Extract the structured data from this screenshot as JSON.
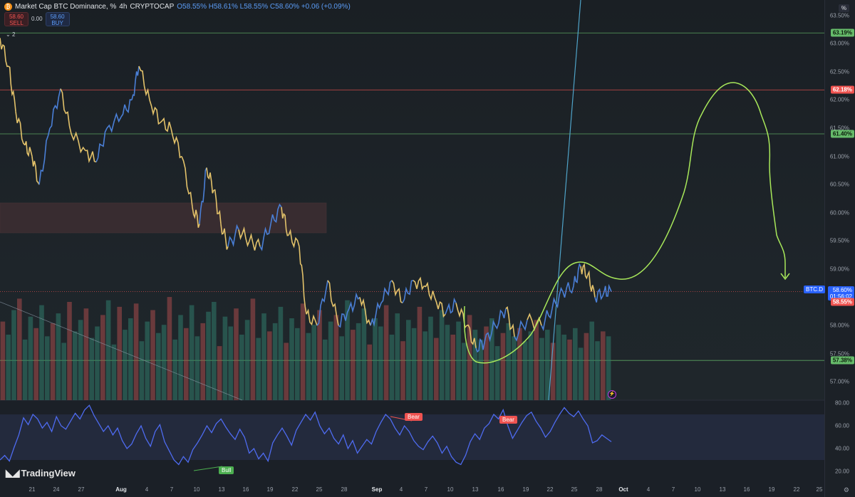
{
  "header": {
    "symbol_title": "Market Cap BTC Dominance, %",
    "interval": "4h",
    "exchange": "CRYPTOCAP",
    "ohlc": "O58.55% H58.61% L58.55% C58.60% +0.06 (+0.09%)",
    "logo_letter": "₿",
    "percent_toggle": "%",
    "indicators_count": "2"
  },
  "trade": {
    "sell_price": "58.60",
    "sell_label": "SELL",
    "spread": "0.00",
    "buy_price": "58.60",
    "buy_label": "BUY"
  },
  "price_axis": {
    "ticks": [
      "63.50%",
      "63.00%",
      "62.50%",
      "62.00%",
      "61.50%",
      "61.00%",
      "60.50%",
      "60.00%",
      "59.50%",
      "59.00%",
      "58.00%",
      "57.50%",
      "57.00%"
    ],
    "levels": [
      {
        "label": "63.19%",
        "value": 63.19,
        "color": "#66bb6a",
        "text_color": "#0b1a0b"
      },
      {
        "label": "62.18%",
        "value": 62.18,
        "color": "#ef5350",
        "text_color": "#ffffff"
      },
      {
        "label": "61.40%",
        "value": 61.4,
        "color": "#66bb6a",
        "text_color": "#0b1a0b"
      },
      {
        "label": "57.38%",
        "value": 57.38,
        "color": "#66bb6a",
        "text_color": "#0b1a0b"
      }
    ],
    "symbol_tag": "BTC.D",
    "last_price": "58.60%",
    "countdown": "01:56:02",
    "prev_close": "58.55%"
  },
  "rsi_axis": {
    "ticks": [
      "80.00",
      "60.00",
      "40.00",
      "20.00"
    ]
  },
  "time_axis": {
    "ticks": [
      {
        "label": "21",
        "bold": false
      },
      {
        "label": "24",
        "bold": false
      },
      {
        "label": "27",
        "bold": false
      },
      {
        "label": "Aug",
        "bold": true
      },
      {
        "label": "4",
        "bold": false
      },
      {
        "label": "7",
        "bold": false
      },
      {
        "label": "10",
        "bold": false
      },
      {
        "label": "13",
        "bold": false
      },
      {
        "label": "16",
        "bold": false
      },
      {
        "label": "19",
        "bold": false
      },
      {
        "label": "22",
        "bold": false
      },
      {
        "label": "25",
        "bold": false
      },
      {
        "label": "28",
        "bold": false
      },
      {
        "label": "Sep",
        "bold": true
      },
      {
        "label": "4",
        "bold": false
      },
      {
        "label": "7",
        "bold": false
      },
      {
        "label": "10",
        "bold": false
      },
      {
        "label": "13",
        "bold": false
      },
      {
        "label": "16",
        "bold": false
      },
      {
        "label": "19",
        "bold": false
      },
      {
        "label": "22",
        "bold": false
      },
      {
        "label": "25",
        "bold": false
      },
      {
        "label": "28",
        "bold": false
      },
      {
        "label": "Oct",
        "bold": true
      },
      {
        "label": "4",
        "bold": false
      },
      {
        "label": "7",
        "bold": false
      },
      {
        "label": "10",
        "bold": false
      },
      {
        "label": "13",
        "bold": false
      },
      {
        "label": "16",
        "bold": false
      },
      {
        "label": "19",
        "bold": false
      },
      {
        "label": "22",
        "bold": false
      },
      {
        "label": "25",
        "bold": false
      }
    ]
  },
  "signals": {
    "bull_label": "Bull",
    "bear_label_1": "Bear",
    "bear_label_2": "Bear"
  },
  "branding": {
    "name": "TradingView"
  },
  "colors": {
    "up": "#4a7fd6",
    "down": "#e3c26a",
    "support": "#66bb6a",
    "resistance": "#ef5350",
    "projection": "#a8e85a",
    "trend": "#4fa3c8",
    "rsi": "#4e6bf0"
  },
  "chart_data": {
    "type": "line",
    "title": "Market Cap BTC Dominance, %",
    "ylim": [
      56.7,
      63.8
    ],
    "price_path": [
      [
        0,
        63.1
      ],
      [
        12,
        62.6
      ],
      [
        22,
        61.8
      ],
      [
        35,
        61.2
      ],
      [
        45,
        61.0
      ],
      [
        55,
        60.5
      ],
      [
        70,
        61.5
      ],
      [
        85,
        62.2
      ],
      [
        100,
        61.4
      ],
      [
        120,
        61.1
      ],
      [
        135,
        60.9
      ],
      [
        150,
        61.5
      ],
      [
        170,
        61.7
      ],
      [
        185,
        62.0
      ],
      [
        195,
        62.6
      ],
      [
        210,
        62.0
      ],
      [
        225,
        61.6
      ],
      [
        240,
        61.5
      ],
      [
        255,
        61.0
      ],
      [
        270,
        60.1
      ],
      [
        280,
        59.8
      ],
      [
        290,
        60.8
      ],
      [
        300,
        60.4
      ],
      [
        310,
        59.8
      ],
      [
        320,
        59.4
      ],
      [
        335,
        59.7
      ],
      [
        350,
        59.5
      ],
      [
        365,
        59.4
      ],
      [
        380,
        59.8
      ],
      [
        395,
        60.1
      ],
      [
        405,
        59.6
      ],
      [
        420,
        59.4
      ],
      [
        430,
        58.2
      ],
      [
        445,
        58.0
      ],
      [
        460,
        58.8
      ],
      [
        475,
        58.0
      ],
      [
        490,
        58.3
      ],
      [
        505,
        58.5
      ],
      [
        520,
        58.0
      ],
      [
        535,
        58.4
      ],
      [
        550,
        58.8
      ],
      [
        565,
        58.4
      ],
      [
        580,
        58.8
      ],
      [
        595,
        58.7
      ],
      [
        610,
        58.5
      ],
      [
        625,
        58.2
      ],
      [
        640,
        58.4
      ],
      [
        655,
        58.0
      ],
      [
        668,
        57.6
      ],
      [
        680,
        57.7
      ],
      [
        695,
        58.0
      ],
      [
        710,
        58.3
      ],
      [
        722,
        57.8
      ],
      [
        740,
        58.1
      ],
      [
        760,
        58.0
      ],
      [
        775,
        58.3
      ],
      [
        790,
        58.6
      ],
      [
        805,
        58.7
      ],
      [
        815,
        59.05
      ],
      [
        825,
        58.9
      ],
      [
        835,
        58.5
      ],
      [
        848,
        58.6
      ],
      [
        858,
        58.6
      ]
    ],
    "volume": [
      0.48,
      0.4,
      0.55,
      0.62,
      0.37,
      0.51,
      0.44,
      0.58,
      0.39,
      0.47,
      0.53,
      0.35,
      0.6,
      0.42,
      0.49,
      0.56,
      0.38,
      0.45,
      0.52,
      0.61,
      0.34,
      0.57,
      0.43,
      0.5,
      0.59,
      0.36,
      0.48,
      0.55,
      0.41,
      0.46,
      0.63,
      0.37,
      0.52,
      0.44,
      0.58,
      0.39,
      0.47,
      0.54,
      0.6,
      0.33,
      0.51,
      0.45,
      0.56,
      0.4,
      0.49,
      0.62,
      0.38,
      0.53,
      0.42,
      0.47,
      0.57,
      0.35,
      0.5,
      0.44,
      0.59,
      0.41,
      0.46,
      0.55,
      0.37,
      0.48,
      0.52,
      0.39,
      0.61,
      0.43,
      0.47,
      0.56,
      0.34,
      0.5,
      0.45,
      0.58,
      0.4,
      0.53,
      0.36,
      0.49,
      0.44,
      0.57,
      0.42,
      0.51,
      0.38,
      0.55,
      0.46,
      0.4,
      0.48,
      0.35,
      0.52,
      0.43,
      0.37,
      0.45,
      0.5,
      0.33,
      0.41,
      0.47,
      0.39,
      0.44,
      0.36,
      0.42,
      0.49,
      0.38,
      0.43,
      0.35,
      0.46,
      0.4,
      0.37,
      0.44,
      0.32,
      0.41,
      0.48,
      0.36,
      0.42,
      0.39
    ],
    "rsi": [
      30,
      34,
      29,
      41,
      52,
      67,
      61,
      70,
      66,
      58,
      63,
      55,
      68,
      60,
      57,
      64,
      71,
      66,
      74,
      78,
      69,
      62,
      55,
      60,
      52,
      58,
      47,
      40,
      44,
      53,
      60,
      49,
      42,
      55,
      61,
      46,
      38,
      30,
      26,
      33,
      28,
      39,
      45,
      52,
      60,
      54,
      62,
      66,
      59,
      53,
      48,
      57,
      50,
      36,
      40,
      31,
      36,
      29,
      45,
      52,
      58,
      51,
      43,
      56,
      63,
      70,
      65,
      72,
      60,
      53,
      58,
      49,
      44,
      52,
      40,
      47,
      36,
      42,
      48,
      44,
      55,
      63,
      70,
      66,
      58,
      52,
      60,
      55,
      47,
      42,
      39,
      46,
      51,
      45,
      36,
      42,
      33,
      28,
      26,
      34,
      46,
      53,
      48,
      58,
      62,
      70,
      66,
      74,
      60,
      49,
      56,
      63,
      69,
      72,
      64,
      58,
      50,
      55,
      63,
      70,
      76,
      71,
      68,
      73,
      66,
      60,
      45,
      47,
      52,
      49,
      46
    ]
  }
}
